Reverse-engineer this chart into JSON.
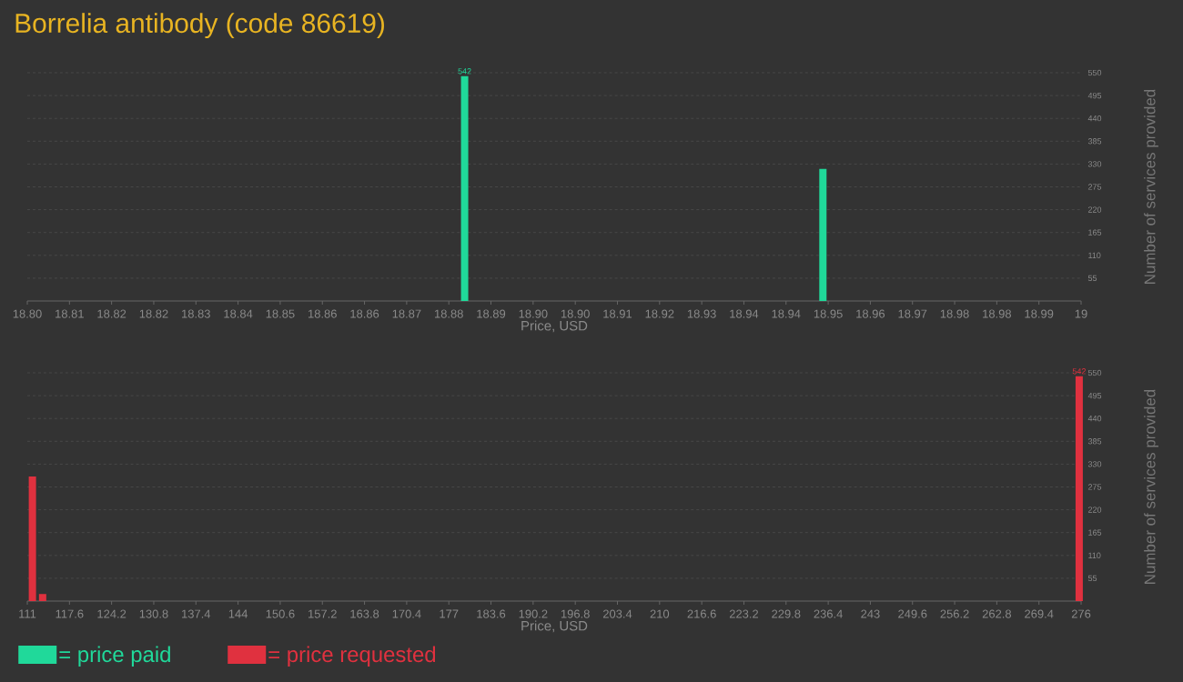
{
  "chart_data": [
    {
      "type": "bar",
      "title": "Borrelia antibody (code 86619)",
      "xlabel": "Price, USD",
      "ylabel": "Number of services provided",
      "grid": "y",
      "legend": "bottom left",
      "x": [
        18.883,
        18.951
      ],
      "series": [
        {
          "name": "= price paid",
          "color": "#20d99a",
          "values": [
            542,
            318
          ],
          "value_labels": [
            "542",
            null
          ]
        }
      ],
      "xlim": [
        18.8,
        19
      ],
      "xticks": [
        {
          "value": 18.8,
          "label": "18.80"
        },
        {
          "value": 18.808,
          "label": "18.81"
        },
        {
          "value": 18.816,
          "label": "18.82"
        },
        {
          "value": 18.824,
          "label": "18.82"
        },
        {
          "value": 18.832,
          "label": "18.83"
        },
        {
          "value": 18.84,
          "label": "18.84"
        },
        {
          "value": 18.848,
          "label": "18.85"
        },
        {
          "value": 18.856,
          "label": "18.86"
        },
        {
          "value": 18.864,
          "label": "18.86"
        },
        {
          "value": 18.872,
          "label": "18.87"
        },
        {
          "value": 18.88,
          "label": "18.88"
        },
        {
          "value": 18.888,
          "label": "18.89"
        },
        {
          "value": 18.896,
          "label": "18.90"
        },
        {
          "value": 18.904,
          "label": "18.90"
        },
        {
          "value": 18.912,
          "label": "18.91"
        },
        {
          "value": 18.92,
          "label": "18.92"
        },
        {
          "value": 18.928,
          "label": "18.93"
        },
        {
          "value": 18.936,
          "label": "18.94"
        },
        {
          "value": 18.944,
          "label": "18.94"
        },
        {
          "value": 18.952,
          "label": "18.95"
        },
        {
          "value": 18.96,
          "label": "18.96"
        },
        {
          "value": 18.968,
          "label": "18.97"
        },
        {
          "value": 18.976,
          "label": "18.98"
        },
        {
          "value": 18.984,
          "label": "18.98"
        },
        {
          "value": 18.992,
          "label": "18.99"
        },
        19
      ],
      "ylim": [
        0,
        550
      ],
      "yticks": [
        55,
        110,
        165,
        220,
        275,
        330,
        385,
        440,
        495,
        550
      ]
    },
    {
      "type": "bar",
      "xlabel": "Price, USD",
      "ylabel": "Number of services provided",
      "grid": "y",
      "legend": "bottom left",
      "x": [
        111.8,
        113.4,
        275.7
      ],
      "series": [
        {
          "name": "= price requested",
          "color": "#e0313f",
          "values": [
            300,
            17,
            542
          ],
          "value_labels": [
            null,
            null,
            "542"
          ]
        }
      ],
      "xlim": [
        111,
        276
      ],
      "xticks": [
        111,
        117.6,
        124.2,
        130.8,
        137.4,
        144,
        150.6,
        157.2,
        163.8,
        170.4,
        177,
        183.6,
        190.2,
        196.8,
        203.4,
        210,
        216.6,
        223.2,
        229.8,
        236.4,
        243,
        249.6,
        256.2,
        262.8,
        269.4,
        276
      ],
      "ylim": [
        0,
        550
      ],
      "yticks": [
        55,
        110,
        165,
        220,
        275,
        330,
        385,
        440,
        495,
        550
      ]
    }
  ]
}
